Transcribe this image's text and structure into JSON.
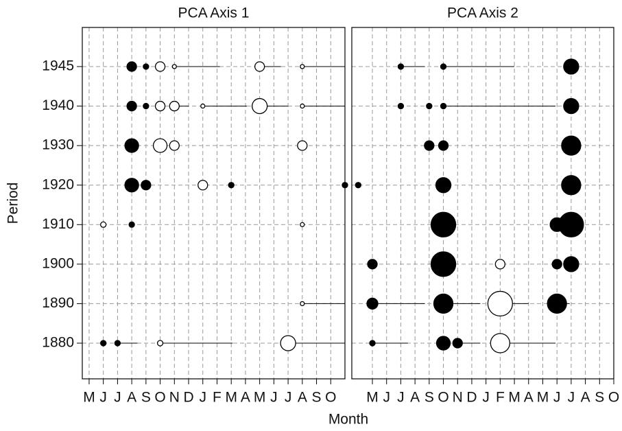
{
  "chart_data": {
    "type": "scatter",
    "ylabel": "Period",
    "xlabel": "Month",
    "categories": [
      "1880",
      "1890",
      "1900",
      "1910",
      "1920",
      "1930",
      "1940",
      "1945"
    ],
    "grid": true,
    "panels": [
      {
        "title": "PCA Axis 1",
        "xlim": [
          -0.48,
          18.0
        ],
        "xticks": [
          {
            "value": 0,
            "label": "M"
          },
          {
            "value": 1,
            "label": "J"
          },
          {
            "value": 2,
            "label": "J"
          },
          {
            "value": 3,
            "label": "A"
          },
          {
            "value": 4,
            "label": "S"
          },
          {
            "value": 5,
            "label": "O"
          },
          {
            "value": 6,
            "label": "N"
          },
          {
            "value": 7,
            "label": "D"
          },
          {
            "value": 8,
            "label": "J"
          },
          {
            "value": 9,
            "label": "F"
          },
          {
            "value": 10,
            "label": "M"
          },
          {
            "value": 11,
            "label": "A"
          },
          {
            "value": 12,
            "label": "M"
          },
          {
            "value": 13,
            "label": "J"
          },
          {
            "value": 14,
            "label": "J"
          },
          {
            "value": 15,
            "label": "A"
          },
          {
            "value": 16,
            "label": "S"
          },
          {
            "value": 17,
            "label": "O"
          }
        ],
        "points": [
          {
            "period": "1945",
            "x": 3,
            "size": 7,
            "filled": true
          },
          {
            "period": "1945",
            "x": 4,
            "size": 4,
            "filled": true
          },
          {
            "period": "1945",
            "x": 5,
            "size": 7,
            "filled": false
          },
          {
            "period": "1945",
            "x": 6,
            "size": 3,
            "filled": false,
            "x_end": 9.2
          },
          {
            "period": "1945",
            "x": 12,
            "size": 7,
            "filled": false,
            "x_end": 13.5
          },
          {
            "period": "1945",
            "x": 15,
            "size": 3,
            "filled": false,
            "x_end": 18
          },
          {
            "period": "1940",
            "x": 3,
            "size": 7,
            "filled": true
          },
          {
            "period": "1940",
            "x": 4,
            "size": 4,
            "filled": true
          },
          {
            "period": "1940",
            "x": 5,
            "size": 7,
            "filled": false
          },
          {
            "period": "1940",
            "x": 6,
            "size": 7,
            "filled": false,
            "x_end": 7
          },
          {
            "period": "1940",
            "x": 8,
            "size": 3,
            "filled": false,
            "x_end": 11.1
          },
          {
            "period": "1940",
            "x": 12,
            "size": 11,
            "filled": false,
            "x_end": 14
          },
          {
            "period": "1940",
            "x": 15,
            "size": 3,
            "filled": false,
            "x_end": 18
          },
          {
            "period": "1930",
            "x": 3,
            "size": 10,
            "filled": true
          },
          {
            "period": "1930",
            "x": 5,
            "size": 10,
            "filled": false
          },
          {
            "period": "1930",
            "x": 6,
            "size": 7,
            "filled": false
          },
          {
            "period": "1930",
            "x": 15,
            "size": 7,
            "filled": false
          },
          {
            "period": "1920",
            "x": 3,
            "size": 10,
            "filled": true
          },
          {
            "period": "1920",
            "x": 4,
            "size": 7,
            "filled": true
          },
          {
            "period": "1920",
            "x": 8,
            "size": 7,
            "filled": false
          },
          {
            "period": "1920",
            "x": 10,
            "size": 4,
            "filled": true
          },
          {
            "period": "1920",
            "x": 18,
            "size": 4,
            "filled": true
          },
          {
            "period": "1910",
            "x": 1,
            "size": 4,
            "filled": false
          },
          {
            "period": "1910",
            "x": 3,
            "size": 4,
            "filled": true
          },
          {
            "period": "1910",
            "x": 15,
            "size": 3,
            "filled": false
          },
          {
            "period": "1890",
            "x": 15,
            "size": 3,
            "filled": false,
            "x_end": 18
          },
          {
            "period": "1880",
            "x": 1,
            "size": 4,
            "filled": true
          },
          {
            "period": "1880",
            "x": 2,
            "size": 4,
            "filled": true,
            "x_end": 3.4
          },
          {
            "period": "1880",
            "x": 5,
            "size": 4,
            "filled": false,
            "x_end": 10.1
          },
          {
            "period": "1880",
            "x": 14,
            "size": 11,
            "filled": false,
            "x_end": 18
          }
        ]
      },
      {
        "title": "PCA Axis 2",
        "xlim": [
          -1.45,
          17.0
        ],
        "xticks": [
          {
            "value": 0,
            "label": "M"
          },
          {
            "value": 1,
            "label": "J"
          },
          {
            "value": 2,
            "label": "J"
          },
          {
            "value": 3,
            "label": "A"
          },
          {
            "value": 4,
            "label": "S"
          },
          {
            "value": 5,
            "label": "O"
          },
          {
            "value": 6,
            "label": "N"
          },
          {
            "value": 7,
            "label": "D"
          },
          {
            "value": 8,
            "label": "J"
          },
          {
            "value": 9,
            "label": "F"
          },
          {
            "value": 10,
            "label": "M"
          },
          {
            "value": 11,
            "label": "A"
          },
          {
            "value": 12,
            "label": "M"
          },
          {
            "value": 13,
            "label": "J"
          },
          {
            "value": 14,
            "label": "J"
          },
          {
            "value": 15,
            "label": "A"
          },
          {
            "value": 16,
            "label": "S"
          },
          {
            "value": 17,
            "label": "O"
          }
        ],
        "points": [
          {
            "period": "1945",
            "x": 2,
            "size": 4,
            "filled": true,
            "x_end": 3.7
          },
          {
            "period": "1945",
            "x": 5,
            "size": 4,
            "filled": true,
            "x_end": 10
          },
          {
            "period": "1945",
            "x": 14,
            "size": 11,
            "filled": true
          },
          {
            "period": "1940",
            "x": 2,
            "size": 4,
            "filled": true
          },
          {
            "period": "1940",
            "x": 4,
            "size": 4,
            "filled": true
          },
          {
            "period": "1940",
            "x": 5,
            "size": 4,
            "filled": true,
            "x_end": 12.9
          },
          {
            "period": "1940",
            "x": 14,
            "size": 11,
            "filled": true
          },
          {
            "period": "1930",
            "x": 4,
            "size": 7,
            "filled": true
          },
          {
            "period": "1930",
            "x": 5,
            "size": 7,
            "filled": true
          },
          {
            "period": "1930",
            "x": 14,
            "size": 14,
            "filled": true
          },
          {
            "period": "1920",
            "x": -1,
            "size": 4,
            "filled": true
          },
          {
            "period": "1920",
            "x": 5,
            "size": 11,
            "filled": true
          },
          {
            "period": "1920",
            "x": 14,
            "size": 14,
            "filled": true
          },
          {
            "period": "1910",
            "x": 5,
            "size": 18,
            "filled": true
          },
          {
            "period": "1910",
            "x": 13,
            "size": 10,
            "filled": true
          },
          {
            "period": "1910",
            "x": 14,
            "size": 18,
            "filled": true
          },
          {
            "period": "1900",
            "x": 0,
            "size": 7,
            "filled": true
          },
          {
            "period": "1900",
            "x": 5,
            "size": 18,
            "filled": true
          },
          {
            "period": "1900",
            "x": 9,
            "size": 7,
            "filled": false
          },
          {
            "period": "1900",
            "x": 13,
            "size": 7,
            "filled": true
          },
          {
            "period": "1900",
            "x": 14,
            "size": 11,
            "filled": true
          },
          {
            "period": "1890",
            "x": 0,
            "size": 8,
            "filled": true,
            "x_end": 3.7
          },
          {
            "period": "1890",
            "x": 5,
            "size": 14,
            "filled": true,
            "x_end": 7.6
          },
          {
            "period": "1890",
            "x": 9,
            "size": 18,
            "filled": false,
            "x_end": 11
          },
          {
            "period": "1890",
            "x": 13,
            "size": 14,
            "filled": true,
            "x_end": 13.9
          },
          {
            "period": "1880",
            "x": 0,
            "size": 4,
            "filled": true,
            "x_end": 2.5
          },
          {
            "period": "1880",
            "x": 5,
            "size": 10,
            "filled": true
          },
          {
            "period": "1880",
            "x": 6,
            "size": 7,
            "filled": true,
            "x_end": 7.6
          },
          {
            "period": "1880",
            "x": 9,
            "size": 14,
            "filled": false,
            "x_end": 12.9
          }
        ]
      }
    ]
  }
}
